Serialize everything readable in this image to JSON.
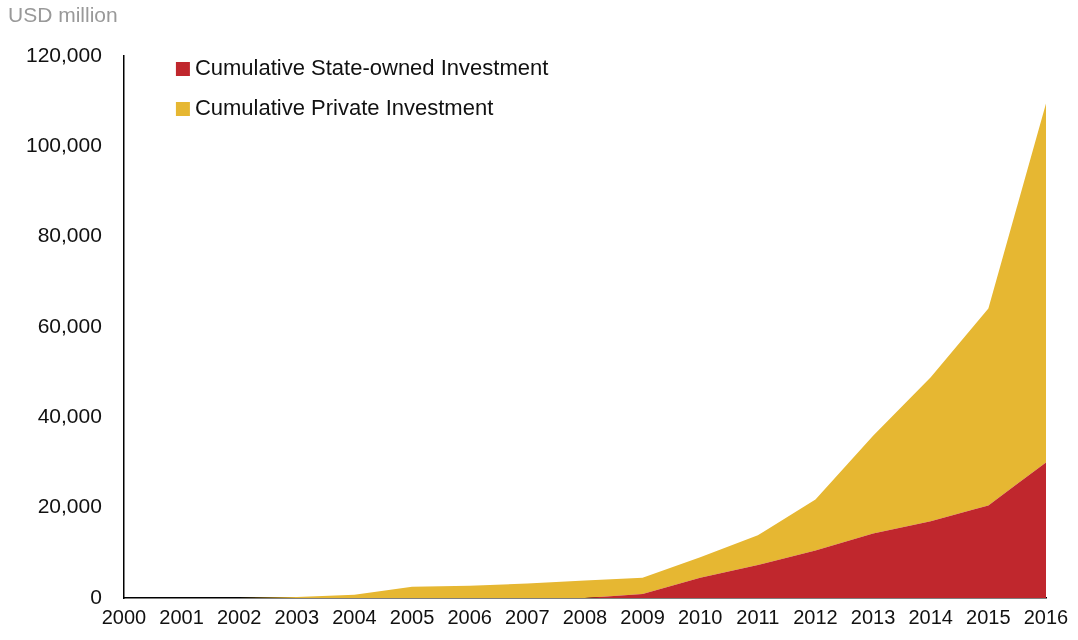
{
  "chart_data": {
    "type": "area",
    "ylabel": "USD million",
    "stacked": true,
    "legend": "top left",
    "grid": false,
    "categories": [
      "2000",
      "2001",
      "2002",
      "2003",
      "2004",
      "2005",
      "2006",
      "2007",
      "2008",
      "2009",
      "2010",
      "2011",
      "2012",
      "2013",
      "2014",
      "2015",
      "2016"
    ],
    "ylim": [
      0,
      120000
    ],
    "yticks": [
      {
        "value": 0,
        "label": "0"
      },
      {
        "value": 20000,
        "label": "20,000"
      },
      {
        "value": 40000,
        "label": "40,000"
      },
      {
        "value": 60000,
        "label": "60,000"
      },
      {
        "value": 80000,
        "label": "80,000"
      },
      {
        "value": 100000,
        "label": "100,000"
      },
      {
        "value": 120000,
        "label": "120,000"
      }
    ],
    "series": [
      {
        "name": "Cumulative State-owned Investment",
        "color": "#c0272d",
        "values": [
          0,
          0,
          0,
          0,
          0,
          0,
          0,
          0,
          0,
          900,
          4500,
          7300,
          10500,
          14300,
          17000,
          20500,
          30000
        ]
      },
      {
        "name": "Cumulative Private Investment",
        "color": "#e6b732",
        "values": [
          0,
          0,
          0,
          200,
          700,
          2500,
          2700,
          3200,
          3900,
          3600,
          4500,
          6600,
          11300,
          21600,
          31900,
          43600,
          79500
        ]
      }
    ]
  }
}
